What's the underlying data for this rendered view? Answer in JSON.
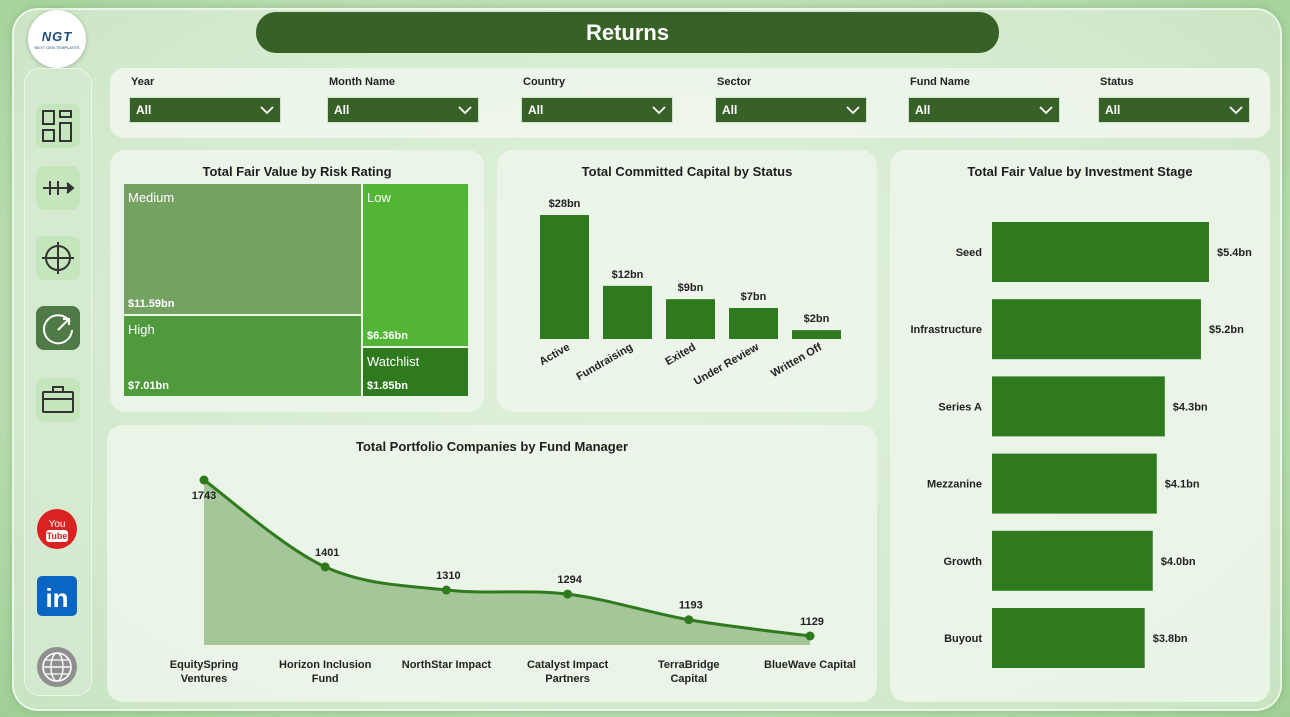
{
  "header": {
    "title": "Returns",
    "logo_text": "NGT",
    "logo_subtext": "NEXT GEN TEMPLATES"
  },
  "sidebar": {
    "items": [
      {
        "name": "dashboard-icon"
      },
      {
        "name": "arrows-icon"
      },
      {
        "name": "crosshair-icon"
      },
      {
        "name": "gauge-icon",
        "active": true
      },
      {
        "name": "briefcase-icon"
      }
    ],
    "social": [
      {
        "name": "youtube-icon",
        "label": "You Tube"
      },
      {
        "name": "linkedin-icon",
        "label": "in"
      },
      {
        "name": "globe-icon",
        "label": "WWW"
      }
    ]
  },
  "filters": [
    {
      "label": "Year",
      "value": "All"
    },
    {
      "label": "Month Name",
      "value": "All"
    },
    {
      "label": "Country",
      "value": "All"
    },
    {
      "label": "Sector",
      "value": "All"
    },
    {
      "label": "Fund Name",
      "value": "All"
    },
    {
      "label": "Status",
      "value": "All"
    }
  ],
  "colors": {
    "dark_green": "#386128",
    "bar_green": "#2f7a1f",
    "treemap_medium": "#75a263",
    "treemap_low": "#52b634",
    "treemap_high": "#4e9a3d",
    "treemap_watchlist": "#2f7a1f"
  },
  "chart_data": [
    {
      "type": "treemap",
      "title": "Total Fair Value by Risk Rating",
      "categories": [
        "Medium",
        "Low",
        "High",
        "Watchlist"
      ],
      "values": [
        11.59,
        6.36,
        7.01,
        1.85
      ],
      "labels": [
        "$11.59bn",
        "$6.36bn",
        "$7.01bn",
        "$1.85bn"
      ]
    },
    {
      "type": "bar",
      "title": "Total Committed Capital by Status",
      "categories": [
        "Active",
        "Fundraising",
        "Exited",
        "Under Review",
        "Written Off"
      ],
      "values": [
        28,
        12,
        9,
        7,
        2
      ],
      "labels": [
        "$28bn",
        "$12bn",
        "$9bn",
        "$7bn",
        "$2bn"
      ]
    },
    {
      "type": "bar",
      "orientation": "horizontal",
      "title": "Total Fair Value by Investment Stage",
      "categories": [
        "Seed",
        "Infrastructure",
        "Series A",
        "Mezzanine",
        "Growth",
        "Buyout"
      ],
      "values": [
        5.4,
        5.2,
        4.3,
        4.1,
        4.0,
        3.8
      ],
      "labels": [
        "$5.4bn",
        "$5.2bn",
        "$4.3bn",
        "$4.1bn",
        "$4.0bn",
        "$3.8bn"
      ]
    },
    {
      "type": "area",
      "title": "Total Portfolio Companies by Fund Manager",
      "categories": [
        "EquitySpring Ventures",
        "Horizon Inclusion Fund",
        "NorthStar Impact",
        "Catalyst Impact Partners",
        "TerraBridge Capital",
        "BlueWave Capital"
      ],
      "category_lines": [
        [
          "EquitySpring",
          "Ventures"
        ],
        [
          "Horizon Inclusion",
          "Fund"
        ],
        [
          "NorthStar Impact"
        ],
        [
          "Catalyst Impact",
          "Partners"
        ],
        [
          "TerraBridge",
          "Capital"
        ],
        [
          "BlueWave Capital"
        ]
      ],
      "values": [
        1743,
        1401,
        1310,
        1294,
        1193,
        1129
      ]
    }
  ]
}
